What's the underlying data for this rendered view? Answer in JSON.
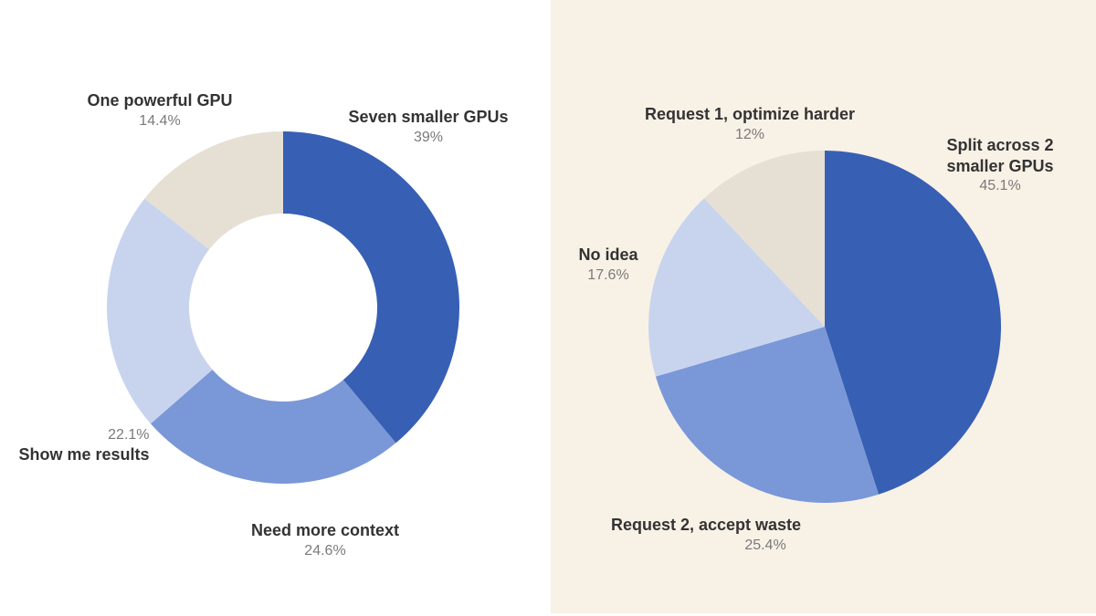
{
  "panels": {
    "left_background": "#ffffff",
    "right_background": "#f8f1e6"
  },
  "colors": {
    "dark_blue": "#375fb4",
    "mid_blue": "#7a98d7",
    "light_blue": "#c8d4ee",
    "beige": "#e6dfd3"
  },
  "chart_data": [
    {
      "type": "pie",
      "variant": "donut",
      "title": "",
      "categories": [
        "Seven smaller GPUs",
        "Need more context",
        "Show me results",
        "One powerful GPU"
      ],
      "values": [
        39,
        24.6,
        22.1,
        14.4
      ],
      "labels": [
        "39%",
        "24.6%",
        "22.1%",
        "14.4%"
      ],
      "colors": [
        "#375fb4",
        "#7a98d7",
        "#c8d4ee",
        "#e6dfd3"
      ],
      "start_angle_deg": 0,
      "direction": "clockwise",
      "center": [
        310,
        337
      ],
      "outer_radius": 193,
      "inner_radius": 103
    },
    {
      "type": "pie",
      "variant": "pie",
      "title": "",
      "categories": [
        "Split across 2 smaller GPUs",
        "Request 2, accept waste",
        "No idea",
        "Request 1, optimize harder"
      ],
      "values": [
        45.1,
        25.4,
        17.6,
        12
      ],
      "labels": [
        "45.1%",
        "25.4%",
        "17.6%",
        "12%"
      ],
      "colors": [
        "#375fb4",
        "#7a98d7",
        "#c8d4ee",
        "#e6dfd3"
      ],
      "start_angle_deg": 0,
      "direction": "clockwise",
      "center": [
        903,
        358
      ],
      "outer_radius": 193,
      "inner_radius": 0
    }
  ],
  "left_chart": {
    "labels": [
      {
        "name": "Seven smaller GPUs",
        "pct": "39%"
      },
      {
        "name": "Need more context",
        "pct": "24.6%"
      },
      {
        "name": "Show me results",
        "pct": "22.1%"
      },
      {
        "name": "One powerful GPU",
        "pct": "14.4%"
      }
    ]
  },
  "right_chart": {
    "labels": [
      {
        "name_line1": "Split across 2",
        "name_line2": "smaller GPUs",
        "pct": "45.1%"
      },
      {
        "name": "Request 2, accept waste",
        "pct": "25.4%"
      },
      {
        "name": "No idea",
        "pct": "17.6%"
      },
      {
        "name": "Request 1, optimize harder",
        "pct": "12%"
      }
    ]
  }
}
